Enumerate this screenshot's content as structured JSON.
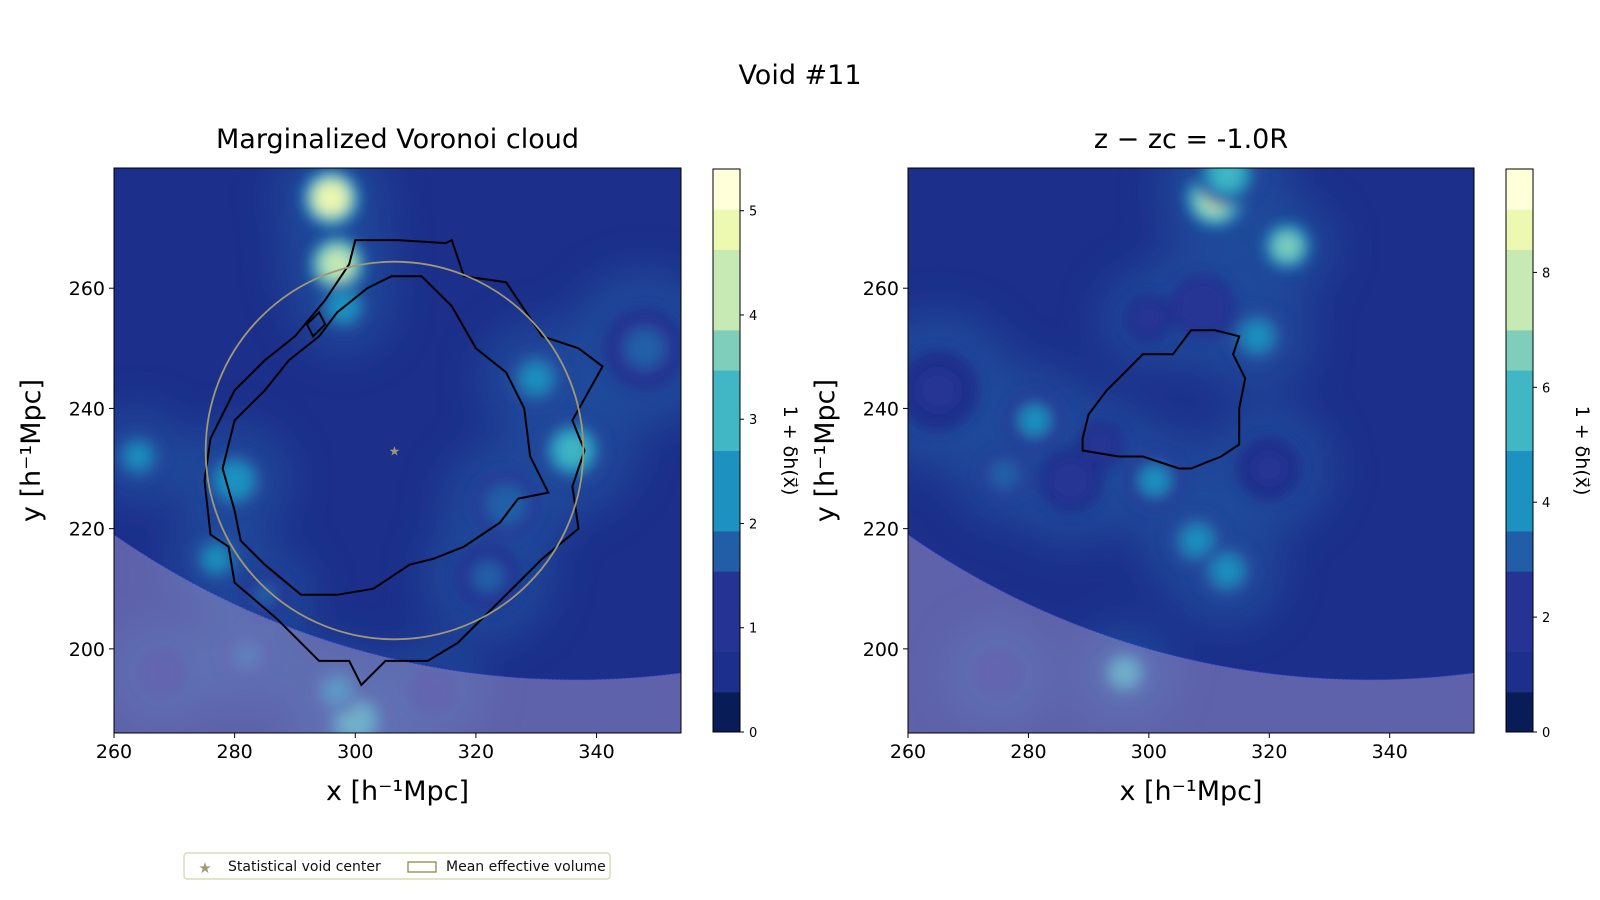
{
  "figure_title": "Void #11",
  "colors": {
    "colormap": [
      "#081d58",
      "#1c2f8a",
      "#253494",
      "#225ea8",
      "#1d91c0",
      "#41b6c4",
      "#7fcdbb",
      "#c7e9b4",
      "#edf8b1",
      "#ffffd9"
    ],
    "mask_overlay": "#b9a9d6",
    "contour": "#000000",
    "circle": "#9f9877",
    "boundary_line": "#2a3bd6",
    "star": "#9f9877"
  },
  "chart_data": [
    {
      "type": "heatmap",
      "title": "Marginalized Voronoi cloud",
      "xlabel": "x [h⁻¹Mpc]",
      "ylabel": "y [h⁻¹Mpc]",
      "xlim": [
        260,
        354
      ],
      "ylim": [
        186,
        280
      ],
      "xticks": [
        260,
        280,
        300,
        320,
        340
      ],
      "yticks": [
        200,
        220,
        240,
        260
      ],
      "colorbar": {
        "label": "1 + δh(x⃗)",
        "range": [
          0,
          5.4
        ],
        "ticks": [
          0,
          1,
          2,
          3,
          4,
          5
        ]
      },
      "void_center": [
        306.5,
        233
      ],
      "mean_effective_radius": 31.3,
      "blobs": [
        {
          "x": 296,
          "y": 275,
          "value": 5.2,
          "r": 3.5
        },
        {
          "x": 297,
          "y": 264,
          "value": 4.6,
          "r": 3.5
        },
        {
          "x": 298,
          "y": 257,
          "value": 3.0,
          "r": 3
        },
        {
          "x": 336,
          "y": 233,
          "value": 3.2,
          "r": 4
        },
        {
          "x": 330,
          "y": 245,
          "value": 2.6,
          "r": 3.5
        },
        {
          "x": 280,
          "y": 228,
          "value": 3.0,
          "r": 3.5
        },
        {
          "x": 264,
          "y": 232,
          "value": 2.6,
          "r": 3
        },
        {
          "x": 277,
          "y": 215,
          "value": 2.6,
          "r": 3
        },
        {
          "x": 325,
          "y": 224,
          "value": 2.2,
          "r": 4
        },
        {
          "x": 322,
          "y": 212,
          "value": 1.8,
          "r": 4
        },
        {
          "x": 348,
          "y": 250,
          "value": 1.8,
          "r": 5
        },
        {
          "x": 285,
          "y": 209,
          "value": 1.8,
          "r": 3
        },
        {
          "x": 300,
          "y": 188,
          "value": 3.2,
          "r": 4
        },
        {
          "x": 297,
          "y": 193,
          "value": 2.6,
          "r": 3
        },
        {
          "x": 282,
          "y": 199,
          "value": 2.2,
          "r": 3
        },
        {
          "x": 268,
          "y": 196,
          "value": 1.6,
          "r": 3
        },
        {
          "x": 313,
          "y": 193,
          "value": 1.6,
          "r": 3
        }
      ],
      "contours": [
        [
          [
            276,
            235
          ],
          [
            280,
            243
          ],
          [
            285,
            248
          ],
          [
            290,
            252
          ],
          [
            295,
            258
          ],
          [
            299,
            264
          ],
          [
            300,
            268
          ],
          [
            307,
            268
          ],
          [
            315,
            267.5
          ],
          [
            316,
            268
          ],
          [
            318,
            262
          ],
          [
            325,
            261
          ],
          [
            331,
            252
          ],
          [
            337,
            250
          ],
          [
            341,
            247
          ],
          [
            336,
            238
          ],
          [
            338,
            233
          ],
          [
            336,
            227
          ],
          [
            337,
            220
          ],
          [
            331,
            215
          ],
          [
            325,
            209
          ],
          [
            317,
            201
          ],
          [
            312,
            198
          ],
          [
            305,
            198
          ],
          [
            301,
            194
          ],
          [
            299,
            198
          ],
          [
            294,
            198
          ],
          [
            287,
            205
          ],
          [
            280,
            211
          ],
          [
            279,
            217
          ],
          [
            276,
            219
          ],
          [
            275,
            228
          ],
          [
            276,
            235
          ]
        ],
        [
          [
            280,
            223
          ],
          [
            278,
            230
          ],
          [
            280,
            238
          ],
          [
            285,
            243
          ],
          [
            289,
            248
          ],
          [
            294,
            252
          ],
          [
            297,
            256
          ],
          [
            302,
            260
          ],
          [
            306,
            262
          ],
          [
            311,
            262
          ],
          [
            316,
            257
          ],
          [
            320,
            250
          ],
          [
            325,
            246
          ],
          [
            328,
            240
          ],
          [
            329,
            232
          ],
          [
            332,
            226
          ],
          [
            327,
            225
          ],
          [
            324,
            221
          ],
          [
            318,
            217
          ],
          [
            313,
            215
          ],
          [
            309,
            214
          ],
          [
            303,
            210
          ],
          [
            297,
            209
          ],
          [
            291,
            209
          ],
          [
            285,
            214
          ],
          [
            281,
            218
          ],
          [
            280,
            223
          ]
        ],
        [
          [
            292,
            254
          ],
          [
            294,
            256
          ],
          [
            295,
            254
          ],
          [
            293,
            252
          ],
          [
            292,
            254
          ]
        ]
      ]
    },
    {
      "type": "heatmap",
      "title": "z − zc = -1.0R",
      "xlabel": "x [h⁻¹Mpc]",
      "ylabel": "y [h⁻¹Mpc]",
      "xlim": [
        260,
        354
      ],
      "ylim": [
        186,
        280
      ],
      "xticks": [
        260,
        280,
        300,
        320,
        340
      ],
      "yticks": [
        200,
        220,
        240,
        260
      ],
      "colorbar": {
        "label": "1 + δh(x⃗)",
        "range": [
          0,
          9.8
        ],
        "ticks": [
          0,
          2,
          4,
          6,
          8
        ]
      },
      "blobs": [
        {
          "x": 311,
          "y": 275,
          "value": 9.0,
          "r": 3.5
        },
        {
          "x": 313,
          "y": 279,
          "value": 6.0,
          "r": 4
        },
        {
          "x": 323,
          "y": 267,
          "value": 7.0,
          "r": 3
        },
        {
          "x": 318,
          "y": 252,
          "value": 5.0,
          "r": 3.5
        },
        {
          "x": 309,
          "y": 257,
          "value": 3.0,
          "r": 4
        },
        {
          "x": 281,
          "y": 238,
          "value": 4.5,
          "r": 3.5
        },
        {
          "x": 276,
          "y": 229,
          "value": 4.0,
          "r": 3
        },
        {
          "x": 301,
          "y": 228,
          "value": 4.5,
          "r": 3.5
        },
        {
          "x": 308,
          "y": 218,
          "value": 5.0,
          "r": 3.5
        },
        {
          "x": 313,
          "y": 213,
          "value": 5.0,
          "r": 3.5
        },
        {
          "x": 296,
          "y": 196,
          "value": 5.5,
          "r": 3
        },
        {
          "x": 287,
          "y": 228,
          "value": 2.5,
          "r": 4
        },
        {
          "x": 265,
          "y": 243,
          "value": 2.0,
          "r": 5
        },
        {
          "x": 275,
          "y": 196,
          "value": 3.0,
          "r": 3
        },
        {
          "x": 320,
          "y": 230,
          "value": 2.0,
          "r": 4
        },
        {
          "x": 292,
          "y": 234,
          "value": 2.5,
          "r": 3
        },
        {
          "x": 300,
          "y": 255,
          "value": 2.2,
          "r": 3
        }
      ],
      "contours": [
        [
          [
            289,
            235
          ],
          [
            290,
            239
          ],
          [
            293,
            243
          ],
          [
            296,
            246
          ],
          [
            299,
            249
          ],
          [
            304,
            249
          ],
          [
            307,
            253
          ],
          [
            311,
            253
          ],
          [
            315,
            252
          ],
          [
            314,
            249
          ],
          [
            316,
            245
          ],
          [
            315,
            240
          ],
          [
            315,
            234
          ],
          [
            312,
            232
          ],
          [
            307,
            230
          ],
          [
            305,
            230
          ],
          [
            302,
            231
          ],
          [
            299,
            232
          ],
          [
            295,
            232
          ],
          [
            289,
            233
          ],
          [
            289,
            235
          ]
        ]
      ]
    }
  ],
  "legend": {
    "items": [
      {
        "label": "Statistical void center",
        "symbol": "star"
      },
      {
        "label": "Mean effective volume",
        "symbol": "rect"
      }
    ]
  }
}
